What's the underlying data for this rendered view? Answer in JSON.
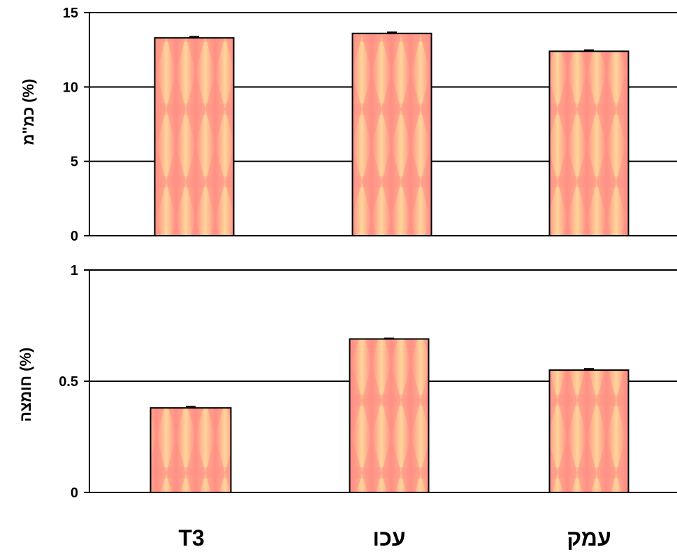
{
  "chart_data": [
    {
      "type": "bar",
      "title": "",
      "xlabel": "",
      "ylabel": "כמ\"מ (%)",
      "ylim": [
        0,
        15
      ],
      "yticks": [
        0,
        5,
        10,
        15
      ],
      "categories": [
        "T3",
        "עכו",
        "עמק"
      ],
      "values": [
        13.3,
        13.6,
        12.4
      ],
      "error": [
        0.08,
        0.08,
        0.08
      ],
      "grid": true,
      "bar_color": "#ff8f85",
      "bar_highlight_color": "#ffd59a"
    },
    {
      "type": "bar",
      "title": "",
      "xlabel": "",
      "ylabel": "חומצה (%)",
      "ylim": [
        0,
        1
      ],
      "yticks": [
        "0",
        "0.5",
        "1"
      ],
      "categories": [
        "T3",
        "עכו",
        "עמק"
      ],
      "values": [
        0.38,
        0.69,
        0.55
      ],
      "error": [
        0.006,
        0.003,
        0.006
      ],
      "grid": true,
      "bar_color": "#ff8f85",
      "bar_highlight_color": "#ffd59a"
    }
  ],
  "category_labels": [
    "T3",
    "עכו",
    "עמק"
  ]
}
